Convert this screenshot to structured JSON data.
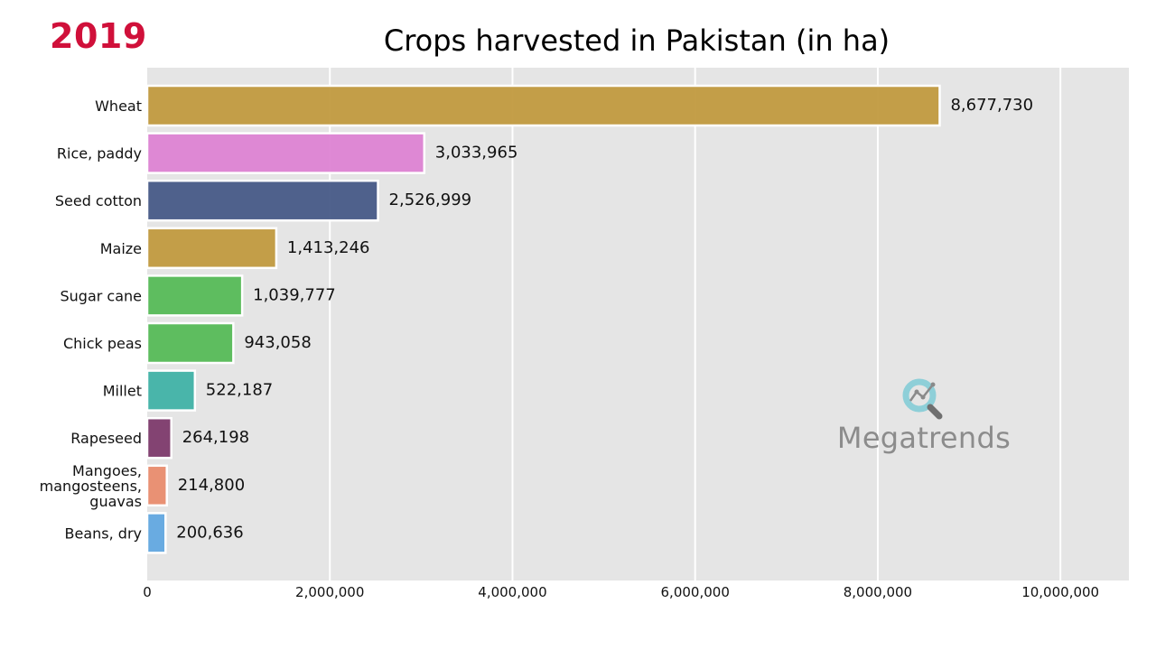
{
  "year": "2019",
  "chart_data": {
    "type": "bar",
    "orientation": "horizontal",
    "title": "Crops harvested in Pakistan (in ha)",
    "categories": [
      "Wheat",
      "Rice, paddy",
      "Seed cotton",
      "Maize",
      "Sugar cane",
      "Chick peas",
      "Millet",
      "Rapeseed",
      "Mangoes, mangosteens, guavas",
      "Beans, dry"
    ],
    "category_lines": [
      [
        "Wheat"
      ],
      [
        "Rice, paddy"
      ],
      [
        "Seed cotton"
      ],
      [
        "Maize"
      ],
      [
        "Sugar cane"
      ],
      [
        "Chick peas"
      ],
      [
        "Millet"
      ],
      [
        "Rapeseed"
      ],
      [
        "Mangoes,",
        "mangosteens,",
        "guavas"
      ],
      [
        "Beans, dry"
      ]
    ],
    "values": [
      8677730,
      3033965,
      2526999,
      1413246,
      1039777,
      943058,
      522187,
      264198,
      214800,
      200636
    ],
    "value_labels": [
      "8,677,730",
      "3,033,965",
      "2,526,999",
      "1,413,246",
      "1,039,777",
      "943,058",
      "522,187",
      "264,198",
      "214,800",
      "200,636"
    ],
    "colors": [
      "#c19a3f",
      "#dd83d3",
      "#475a87",
      "#c19a3f",
      "#56bb57",
      "#56bb57",
      "#40b2a6",
      "#7d3a6b",
      "#e98c6e",
      "#62a8e0"
    ],
    "xlim": [
      0,
      10750000
    ],
    "xticks": [
      0,
      2000000,
      4000000,
      6000000,
      8000000,
      10000000
    ],
    "xtick_labels": [
      "0",
      "2,000,000",
      "4,000,000",
      "6,000,000",
      "8,000,000",
      "10,000,000"
    ],
    "grid": true,
    "background": "#e5e5e5"
  },
  "watermark": {
    "text": "Megatrends",
    "icon": "magnifier-chart-icon"
  }
}
